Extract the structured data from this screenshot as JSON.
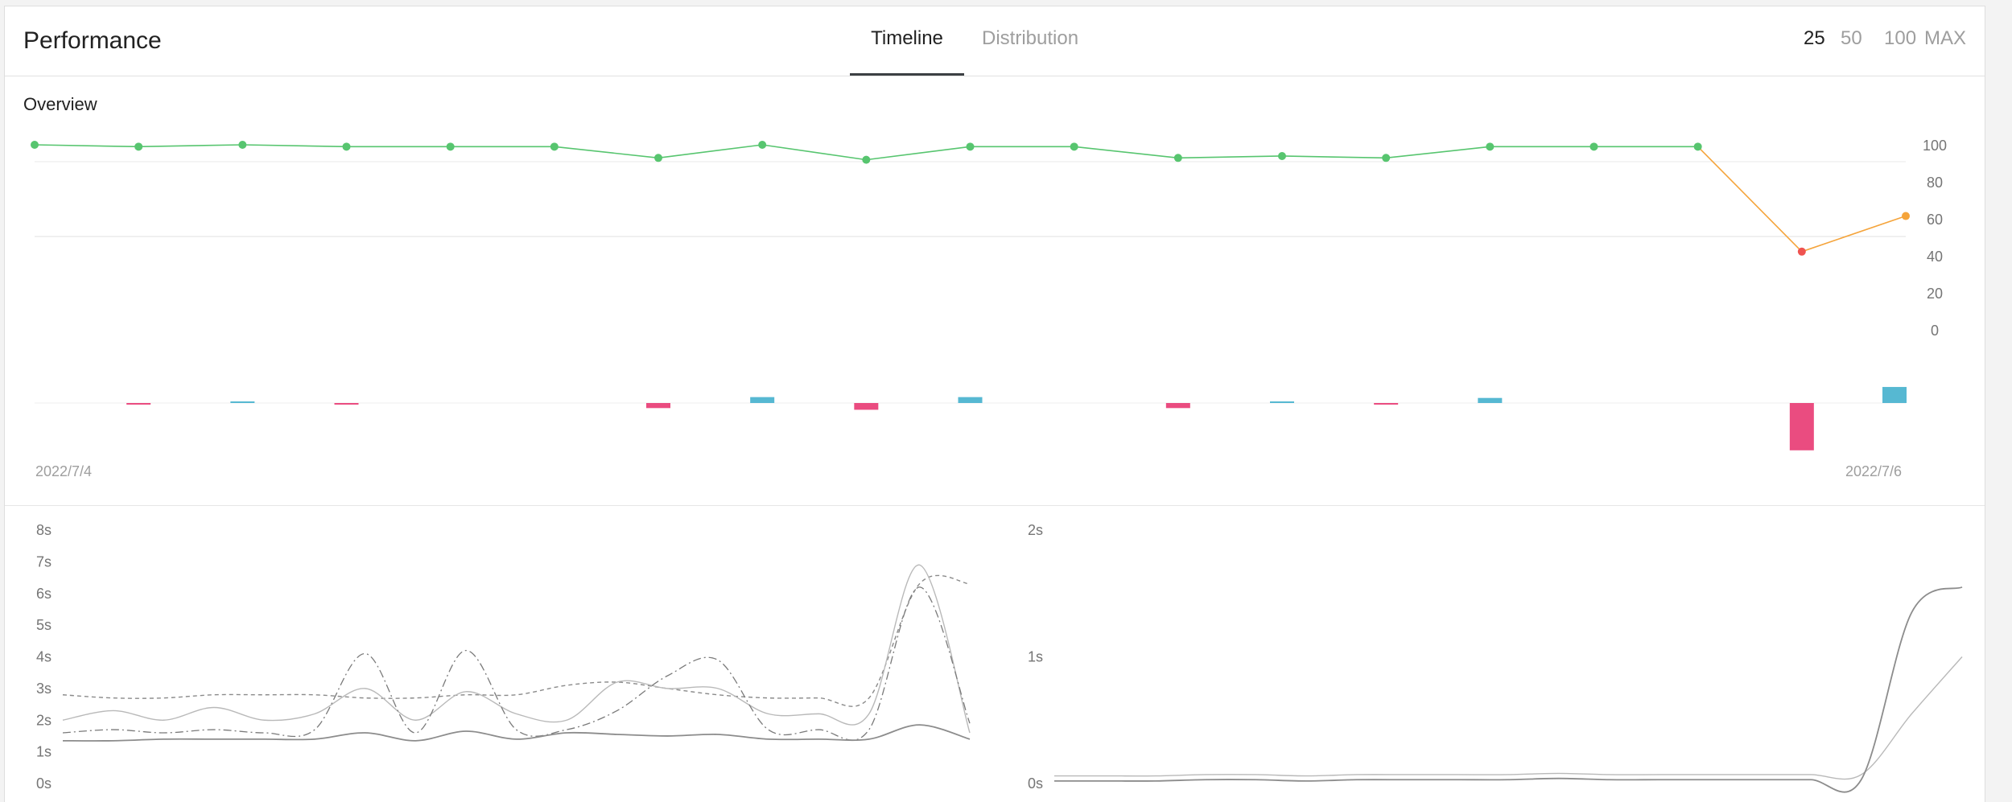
{
  "header": {
    "title": "Performance",
    "tabs": [
      {
        "label": "Timeline",
        "active": true
      },
      {
        "label": "Distribution",
        "active": false
      }
    ],
    "ranges": [
      {
        "label": "25",
        "active": true
      },
      {
        "label": "50",
        "active": false
      },
      {
        "label": "100",
        "active": false
      },
      {
        "label": "MAX",
        "active": false
      }
    ]
  },
  "overview": {
    "title": "Overview",
    "start_date": "2022/7/4",
    "end_date": "2022/7/6"
  },
  "colors": {
    "good": "#57c56f",
    "average": "#f5a43b",
    "poor": "#ef5350",
    "increase": "#56b8d2",
    "decrease": "#ea4c80"
  },
  "chart_data": [
    {
      "type": "line",
      "name": "overview-score",
      "yticks": [
        "100",
        "80",
        "60",
        "40",
        "20",
        "0"
      ],
      "ylim": [
        0,
        100
      ],
      "values": [
        100,
        99,
        100,
        99,
        99,
        99,
        93,
        100,
        92,
        99,
        99,
        93,
        94,
        93,
        99,
        99,
        99,
        43,
        62
      ]
    },
    {
      "type": "bar",
      "name": "overview-change",
      "values": [
        0,
        -1,
        1,
        -1,
        0,
        0,
        -6,
        7,
        -8,
        7,
        0,
        -6,
        1,
        -1,
        6,
        0,
        0,
        -56,
        19
      ]
    },
    {
      "type": "line",
      "name": "timing-left",
      "yticks": [
        "8s",
        "7s",
        "6s",
        "5s",
        "4s",
        "3s",
        "2s",
        "1s",
        "0s"
      ],
      "ylim": [
        0,
        8
      ],
      "series": [
        {
          "style": "dashed",
          "values": [
            2.8,
            2.7,
            2.7,
            2.8,
            2.8,
            2.8,
            2.7,
            2.7,
            2.8,
            2.8,
            3.1,
            3.2,
            3.0,
            2.8,
            2.7,
            2.7,
            2.7,
            6.3,
            6.3
          ]
        },
        {
          "style": "solid-light",
          "values": [
            2.0,
            2.3,
            2.0,
            2.4,
            2.0,
            2.2,
            3.0,
            2.0,
            2.9,
            2.2,
            2.0,
            3.2,
            3.0,
            3.0,
            2.2,
            2.2,
            2.2,
            6.9,
            1.6
          ]
        },
        {
          "style": "dashdot",
          "values": [
            1.6,
            1.7,
            1.6,
            1.7,
            1.6,
            1.7,
            4.1,
            1.6,
            4.2,
            1.7,
            1.7,
            2.3,
            3.4,
            3.9,
            1.7,
            1.7,
            1.7,
            6.2,
            1.9
          ]
        },
        {
          "style": "solid-dark",
          "values": [
            1.35,
            1.35,
            1.4,
            1.4,
            1.4,
            1.4,
            1.6,
            1.35,
            1.65,
            1.4,
            1.6,
            1.55,
            1.5,
            1.55,
            1.4,
            1.4,
            1.4,
            1.85,
            1.4
          ]
        }
      ]
    },
    {
      "type": "line",
      "name": "timing-right",
      "yticks": [
        "2s",
        "1s",
        "0s"
      ],
      "ylim": [
        0,
        2
      ],
      "series": [
        {
          "style": "solid-light",
          "values": [
            0.06,
            0.06,
            0.06,
            0.07,
            0.07,
            0.06,
            0.07,
            0.07,
            0.07,
            0.07,
            0.08,
            0.07,
            0.07,
            0.07,
            0.07,
            0.07,
            0.07,
            0.55,
            1.0
          ]
        },
        {
          "style": "solid-dark",
          "values": [
            0.02,
            0.02,
            0.02,
            0.03,
            0.03,
            0.02,
            0.03,
            0.03,
            0.03,
            0.03,
            0.04,
            0.03,
            0.03,
            0.03,
            0.03,
            0.03,
            0.03,
            1.35,
            1.55
          ]
        }
      ]
    }
  ]
}
